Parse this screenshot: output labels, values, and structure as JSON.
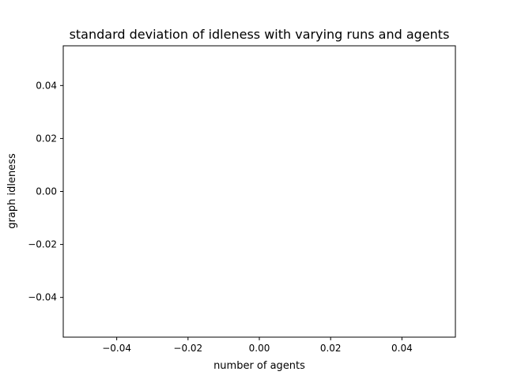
{
  "chart_data": {
    "type": "line",
    "title": "standard deviation of idleness with varying runs and agents",
    "xlabel": "number of agents",
    "ylabel": "graph idleness",
    "xlim": [
      -0.055,
      0.055
    ],
    "ylim": [
      -0.055,
      0.055
    ],
    "x_ticks": [
      -0.04,
      -0.02,
      0.0,
      0.02,
      0.04
    ],
    "x_tick_labels": [
      "−0.04",
      "−0.02",
      "0.00",
      "0.02",
      "0.04"
    ],
    "y_ticks": [
      -0.04,
      -0.02,
      0.0,
      0.02,
      0.04
    ],
    "y_tick_labels": [
      "−0.04",
      "−0.02",
      "0.00",
      "0.02",
      "0.04"
    ],
    "grid": false,
    "series": []
  }
}
